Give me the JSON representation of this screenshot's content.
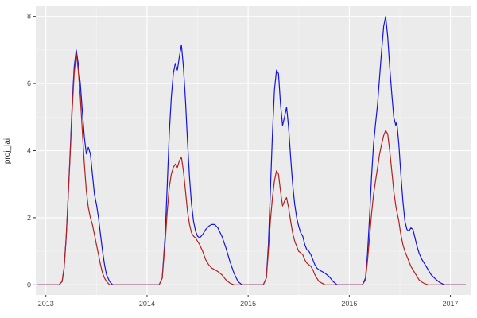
{
  "chart_data": {
    "type": "line",
    "title": "",
    "xlabel": "",
    "ylabel": "proj_lai",
    "xlim": [
      2012.9,
      2017.2
    ],
    "ylim": [
      -0.3,
      8.3
    ],
    "x_ticks": [
      2013,
      2014,
      2015,
      2016,
      2017
    ],
    "y_ticks": [
      0,
      2,
      4,
      6,
      8
    ],
    "x_minor": [
      2013.5,
      2014.5,
      2015.5,
      2016.5
    ],
    "y_minor": [
      1,
      3,
      5,
      7
    ],
    "grid": true,
    "legend": "none",
    "panel_bg": "#EBEBEB",
    "grid_major_color": "#FFFFFF",
    "grid_minor_color": "#F4F4F4",
    "tick_label_color": "#4D4D4D",
    "x": [
      2012.92,
      2013.05,
      2013.13,
      2013.16,
      2013.18,
      2013.2,
      2013.22,
      2013.24,
      2013.26,
      2013.28,
      2013.3,
      2013.32,
      2013.34,
      2013.36,
      2013.38,
      2013.4,
      2013.42,
      2013.44,
      2013.46,
      2013.48,
      2013.5,
      2013.52,
      2013.54,
      2013.56,
      2013.58,
      2013.6,
      2013.63,
      2013.66,
      2013.8,
      2014.0,
      2014.12,
      2014.15,
      2014.18,
      2014.2,
      2014.22,
      2014.24,
      2014.26,
      2014.28,
      2014.3,
      2014.32,
      2014.34,
      2014.36,
      2014.38,
      2014.4,
      2014.42,
      2014.44,
      2014.46,
      2014.48,
      2014.5,
      2014.52,
      2014.55,
      2014.58,
      2014.61,
      2014.64,
      2014.67,
      2014.7,
      2014.74,
      2014.78,
      2014.82,
      2014.86,
      2014.9,
      2014.94,
      2015.05,
      2015.15,
      2015.18,
      2015.2,
      2015.22,
      2015.24,
      2015.26,
      2015.28,
      2015.3,
      2015.32,
      2015.34,
      2015.36,
      2015.38,
      2015.4,
      2015.42,
      2015.44,
      2015.46,
      2015.48,
      2015.5,
      2015.52,
      2015.54,
      2015.56,
      2015.58,
      2015.6,
      2015.62,
      2015.64,
      2015.66,
      2015.68,
      2015.7,
      2015.73,
      2015.76,
      2015.8,
      2015.84,
      2015.88,
      2016.0,
      2016.13,
      2016.16,
      2016.18,
      2016.2,
      2016.22,
      2016.24,
      2016.26,
      2016.28,
      2016.3,
      2016.32,
      2016.34,
      2016.36,
      2016.38,
      2016.4,
      2016.42,
      2016.44,
      2016.46,
      2016.47,
      2016.49,
      2016.51,
      2016.53,
      2016.55,
      2016.57,
      2016.59,
      2016.61,
      2016.63,
      2016.65,
      2016.67,
      2016.69,
      2016.72,
      2016.75,
      2016.78,
      2016.81,
      2016.85,
      2016.89,
      2016.94,
      2017.05,
      2017.15
    ],
    "series": [
      {
        "name": "blue",
        "color": "#1414E0",
        "values": [
          0,
          0,
          0,
          0.1,
          0.5,
          1.4,
          2.6,
          4.0,
          5.4,
          6.5,
          7.0,
          6.6,
          6.0,
          5.2,
          4.4,
          3.9,
          4.1,
          3.9,
          3.3,
          2.7,
          2.4,
          2.0,
          1.5,
          1.0,
          0.6,
          0.3,
          0.1,
          0,
          0,
          0,
          0,
          0.2,
          1.5,
          3.0,
          4.5,
          5.6,
          6.3,
          6.6,
          6.4,
          6.8,
          7.15,
          6.5,
          5.5,
          4.3,
          3.2,
          2.4,
          1.9,
          1.6,
          1.45,
          1.4,
          1.5,
          1.65,
          1.75,
          1.8,
          1.8,
          1.7,
          1.45,
          1.1,
          0.7,
          0.35,
          0.1,
          0,
          0,
          0,
          0.2,
          1.2,
          2.8,
          4.5,
          5.8,
          6.4,
          6.3,
          5.4,
          4.75,
          5.0,
          5.3,
          4.7,
          3.8,
          3.0,
          2.4,
          2.0,
          1.75,
          1.55,
          1.45,
          1.2,
          1.05,
          1.0,
          0.9,
          0.75,
          0.6,
          0.5,
          0.45,
          0.4,
          0.35,
          0.25,
          0.1,
          0,
          0,
          0,
          0.2,
          0.9,
          2.0,
          3.2,
          4.2,
          4.8,
          5.4,
          6.2,
          7.0,
          7.7,
          8.0,
          7.4,
          6.5,
          5.7,
          5.0,
          4.75,
          4.85,
          4.2,
          3.3,
          2.5,
          1.9,
          1.65,
          1.6,
          1.7,
          1.65,
          1.4,
          1.15,
          0.95,
          0.75,
          0.6,
          0.45,
          0.3,
          0.18,
          0.08,
          0,
          0,
          0
        ]
      },
      {
        "name": "red",
        "color": "#B22222",
        "values": [
          0,
          0,
          0,
          0.1,
          0.5,
          1.4,
          2.6,
          3.9,
          5.2,
          6.3,
          6.9,
          6.4,
          5.6,
          4.6,
          3.6,
          2.8,
          2.3,
          2.0,
          1.8,
          1.5,
          1.2,
          0.9,
          0.6,
          0.35,
          0.2,
          0.1,
          0,
          0,
          0,
          0,
          0,
          0.2,
          1.3,
          2.2,
          2.9,
          3.3,
          3.5,
          3.6,
          3.5,
          3.7,
          3.8,
          3.4,
          2.8,
          2.2,
          1.8,
          1.55,
          1.45,
          1.4,
          1.3,
          1.2,
          1.0,
          0.75,
          0.6,
          0.5,
          0.45,
          0.4,
          0.3,
          0.15,
          0.05,
          0,
          0,
          0,
          0,
          0,
          0.2,
          1.0,
          1.9,
          2.6,
          3.1,
          3.4,
          3.3,
          2.8,
          2.35,
          2.5,
          2.6,
          2.3,
          1.9,
          1.55,
          1.3,
          1.15,
          1.0,
          0.95,
          0.9,
          0.75,
          0.65,
          0.6,
          0.55,
          0.45,
          0.3,
          0.2,
          0.1,
          0.05,
          0,
          0,
          0,
          0,
          0,
          0,
          0.15,
          0.7,
          1.4,
          2.1,
          2.7,
          3.1,
          3.5,
          3.9,
          4.2,
          4.45,
          4.6,
          4.5,
          4.0,
          3.4,
          2.8,
          2.35,
          2.2,
          1.9,
          1.5,
          1.2,
          1.0,
          0.85,
          0.7,
          0.55,
          0.45,
          0.35,
          0.25,
          0.15,
          0.08,
          0.03,
          0,
          0,
          0,
          0,
          0,
          0,
          0
        ]
      }
    ]
  }
}
